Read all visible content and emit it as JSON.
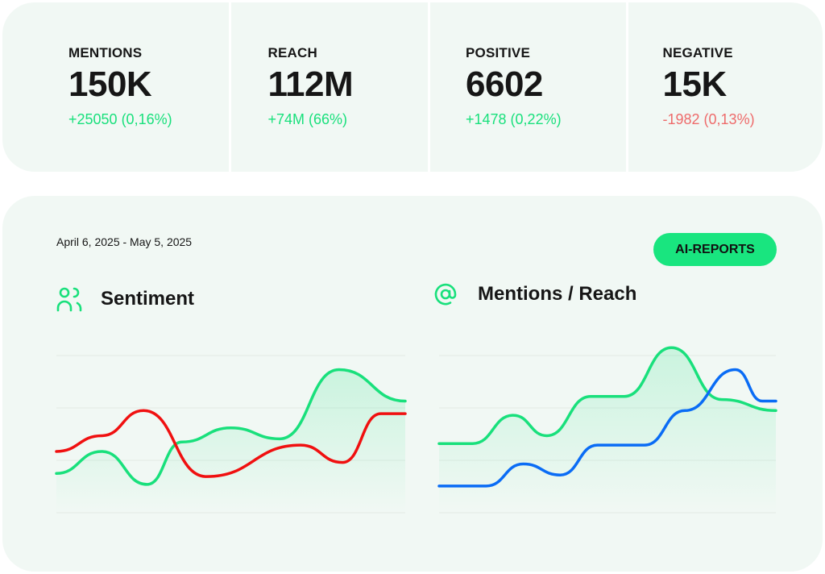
{
  "stats": [
    {
      "label": "MENTIONS",
      "value": "150K",
      "change": "+25050 (0,16%)",
      "trend": "up"
    },
    {
      "label": "REACH",
      "value": "112M",
      "change": "+74M (66%)",
      "trend": "up"
    },
    {
      "label": "POSITIVE",
      "value": "6602",
      "change": "+1478 (0,22%)",
      "trend": "up"
    },
    {
      "label": "NEGATIVE",
      "value": "15K",
      "change": "-1982 (0,13%)",
      "trend": "down"
    }
  ],
  "panel": {
    "date_range": "April 6, 2025 - May 5, 2025",
    "ai_reports_label": "AI-REPORTS"
  },
  "colors": {
    "green": "#19e07c",
    "red": "#f01010",
    "blue": "#0a6cf5",
    "negative_text": "#ee6b6b"
  },
  "chart_data": [
    {
      "type": "line",
      "title": "Sentiment",
      "icon": "users-icon",
      "ylim": [
        0,
        100
      ],
      "grid": true,
      "series": [
        {
          "color": "#19e07c",
          "area": true,
          "x": [
            0,
            13,
            26,
            36,
            50,
            64,
            81,
            100
          ],
          "values": [
            25,
            39,
            18,
            45,
            54,
            47,
            91,
            71
          ]
        },
        {
          "color": "#f01010",
          "x": [
            0,
            13,
            25,
            43,
            70,
            82,
            93,
            100
          ],
          "values": [
            39,
            49,
            65,
            23,
            43,
            32,
            63,
            63
          ]
        }
      ]
    },
    {
      "type": "line",
      "title": "Mentions / Reach",
      "icon": "at-icon",
      "ylim": [
        0,
        100
      ],
      "grid": true,
      "series": [
        {
          "color": "#19e07c",
          "area": true,
          "x": [
            0,
            10,
            22,
            32,
            45,
            55,
            69,
            84,
            100
          ],
          "values": [
            44,
            44,
            62,
            49,
            74,
            74,
            105,
            72,
            65
          ]
        },
        {
          "color": "#0a6cf5",
          "x": [
            0,
            14,
            25,
            36,
            47,
            61,
            73,
            88,
            96,
            100
          ],
          "values": [
            17,
            17,
            31,
            24,
            43,
            43,
            65,
            91,
            71,
            71
          ]
        }
      ]
    }
  ]
}
